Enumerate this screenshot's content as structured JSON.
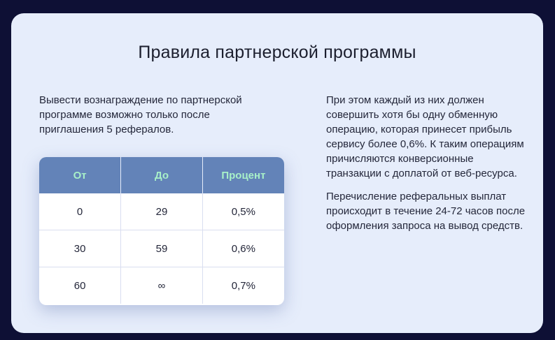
{
  "title": "Правила партнерской программы",
  "intro": "Вывести вознаграждение по партнерской программе возможно только после приглашения 5 рефералов.",
  "right": {
    "p1": "При этом каждый из них должен совершить хотя бы одну обменную операцию, которая принесет прибыль сервису более 0,6%. К таким операциям причисляются конверсионные транзакции с доплатой от веб-ресурса.",
    "p2": "Перечисление реферальных выплат происходит в течение 24-72 часов после оформления запроса на вывод средств."
  },
  "table": {
    "headers": [
      "От",
      "До",
      "Процент"
    ],
    "rows": [
      [
        "0",
        "29",
        "0,5%"
      ],
      [
        "30",
        "59",
        "0,6%"
      ],
      [
        "60",
        "∞",
        "0,7%"
      ]
    ]
  },
  "colors": {
    "page_bg": "#0e1035",
    "card_bg": "#e6edfb",
    "header_bg": "#6383b8",
    "header_text": "#a8f0c8"
  }
}
